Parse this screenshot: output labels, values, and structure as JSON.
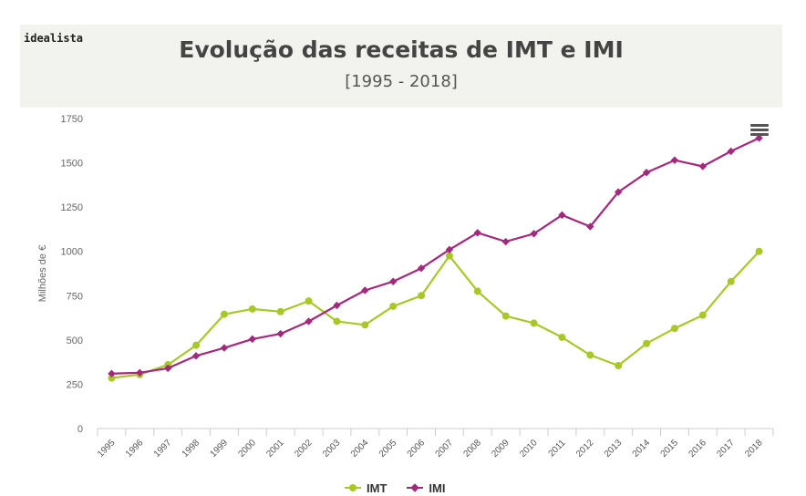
{
  "brand": "idealista",
  "chart_data": {
    "type": "line",
    "title": "Evolução das receitas de IMT e IMI",
    "subtitle": "[1995 - 2018]",
    "ylabel": "Milhões de €",
    "xlabel": "",
    "ylim": [
      0,
      1750
    ],
    "yticks": [
      0,
      250,
      500,
      750,
      1000,
      1250,
      1500,
      1750
    ],
    "categories": [
      "1995",
      "1996",
      "1997",
      "1998",
      "1999",
      "2000",
      "2001",
      "2002",
      "2003",
      "2004",
      "2005",
      "2006",
      "2007",
      "2008",
      "2009",
      "2010",
      "2011",
      "2012",
      "2013",
      "2014",
      "2015",
      "2016",
      "2017",
      "2018"
    ],
    "series": [
      {
        "name": "IMT",
        "color": "#a8c82a",
        "marker": "circle",
        "values": [
          285,
          305,
          360,
          470,
          645,
          675,
          660,
          720,
          605,
          585,
          690,
          750,
          975,
          775,
          635,
          595,
          515,
          415,
          355,
          480,
          565,
          640,
          830,
          1000
        ]
      },
      {
        "name": "IMI",
        "color": "#a3297d",
        "marker": "diamond",
        "values": [
          310,
          315,
          340,
          410,
          455,
          505,
          535,
          605,
          695,
          780,
          830,
          905,
          1010,
          1105,
          1055,
          1100,
          1205,
          1140,
          1335,
          1445,
          1515,
          1480,
          1565,
          1640
        ]
      }
    ],
    "grid": false,
    "legend_position": "bottom-center"
  }
}
